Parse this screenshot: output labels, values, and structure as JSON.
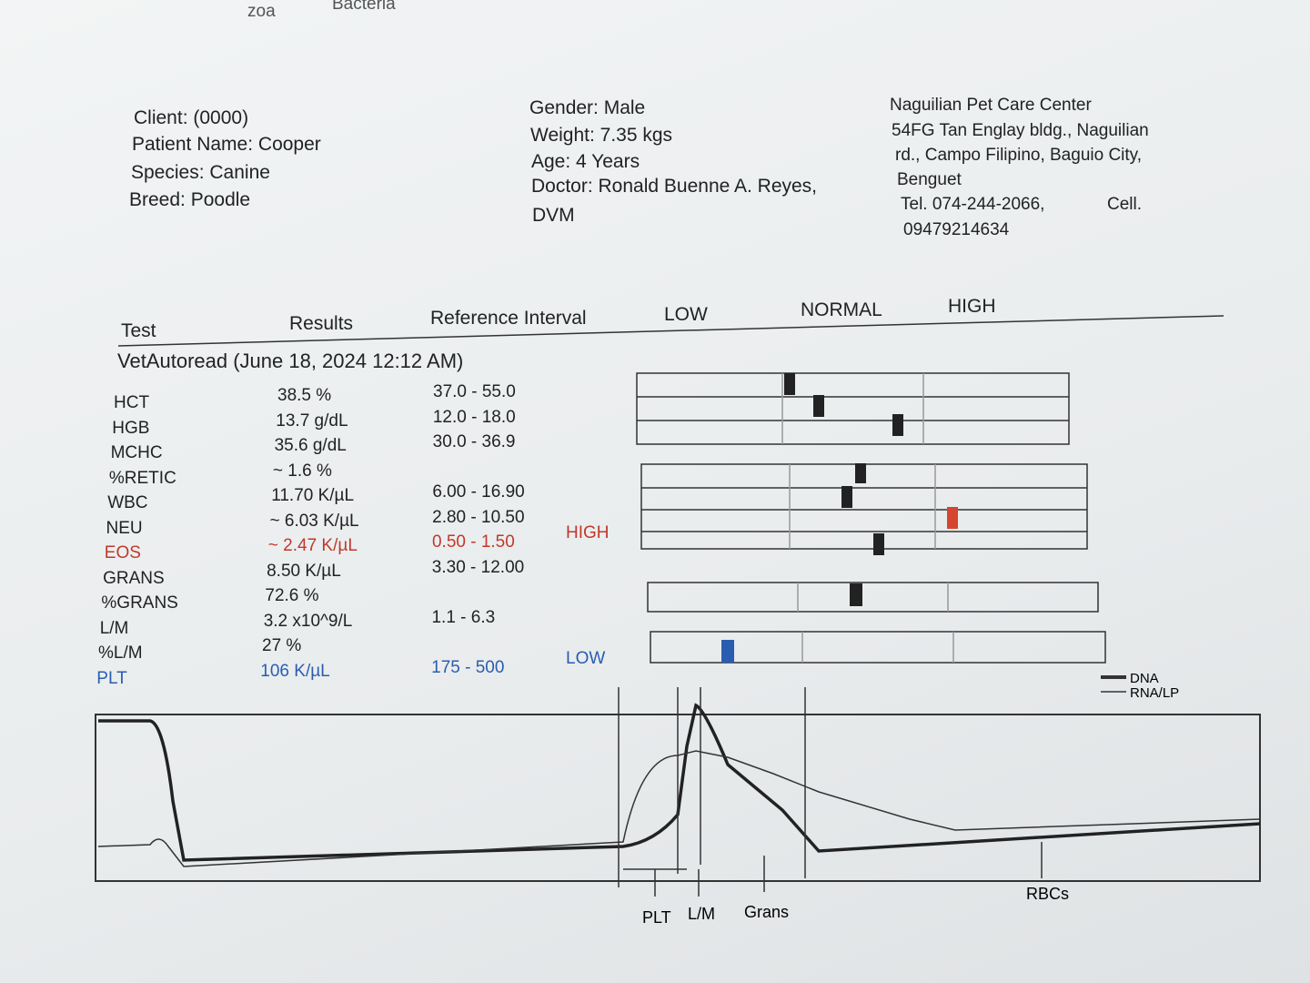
{
  "top_fragments": [
    "zoa",
    "Bacteria"
  ],
  "client": [
    "Client:  (0000)",
    "Patient Name: Cooper",
    "Species: Canine",
    "Breed: Poodle"
  ],
  "patient": [
    "Gender: Male",
    "Weight: 7.35 kgs",
    "Age: 4 Years",
    "Doctor: Ronald Buenne A. Reyes,",
    "DVM"
  ],
  "clinic": {
    "lines": [
      "Naguilian Pet Care Center",
      "54FG Tan Englay bldg., Naguilian",
      "rd., Campo Filipino, Baguio City,",
      "Benguet"
    ],
    "tel": "Tel. 074-244-2066,",
    "cell": "Cell.",
    "cell_number": "09479214634"
  },
  "table": {
    "headers": [
      "Test",
      "Results",
      "Reference Interval",
      "LOW",
      "NORMAL",
      "HIGH"
    ],
    "section": "VetAutoread (June 18, 2024 12:12 AM)",
    "rows": [
      {
        "test": "HCT",
        "result": "38.5 %",
        "reference": "37.0 - 55.0"
      },
      {
        "test": "HGB",
        "result": "13.7 g/dL",
        "reference": "12.0 - 18.0"
      },
      {
        "test": "MCHC",
        "result": "35.6 g/dL",
        "reference": "30.0 - 36.9"
      },
      {
        "test": "%RETIC",
        "result": "~ 1.6 %"
      },
      {
        "test": "WBC",
        "result": "11.70 K/µL",
        "reference": "6.00 - 16.90"
      },
      {
        "test": "NEU",
        "result": "~ 6.03 K/µL",
        "reference": "2.80 - 10.50"
      },
      {
        "test": "EOS",
        "result": "~ 2.47 K/µL",
        "reference": "0.50 - 1.50",
        "flag": "HIGH",
        "color": "#c0392b"
      },
      {
        "test": "GRANS",
        "result": "8.50 K/µL",
        "reference": "3.30 - 12.00"
      },
      {
        "test": "%GRANS",
        "result": "72.6 %"
      },
      {
        "test": "L/M",
        "result": "3.2 x10^9/L",
        "reference": "1.1 - 6.3"
      },
      {
        "test": "%L/M",
        "result": "27 %"
      },
      {
        "test": "PLT",
        "result": "106 K/µL",
        "reference": "175 - 500",
        "flag": "LOW",
        "color": "#2a5db0"
      }
    ]
  },
  "graph": {
    "legend": [
      "DNA",
      "RNA/LP"
    ],
    "labels": [
      "PLT",
      "L/M",
      "Grans",
      "RBCs"
    ]
  }
}
